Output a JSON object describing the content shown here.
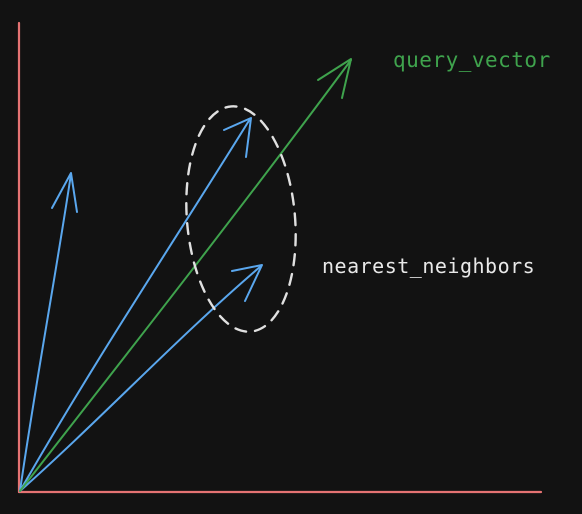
{
  "colors": {
    "background": "#121212",
    "axes": "#e57373",
    "neighbor_vectors": "#5aa7ee",
    "query_vector": "#3fa34d",
    "neighborhood_boundary": "#e0e0e0",
    "label_text": "#e8e8e8"
  },
  "labels": {
    "query_vector": "query_vector",
    "nearest_neighbors": "nearest_neighbors"
  }
}
